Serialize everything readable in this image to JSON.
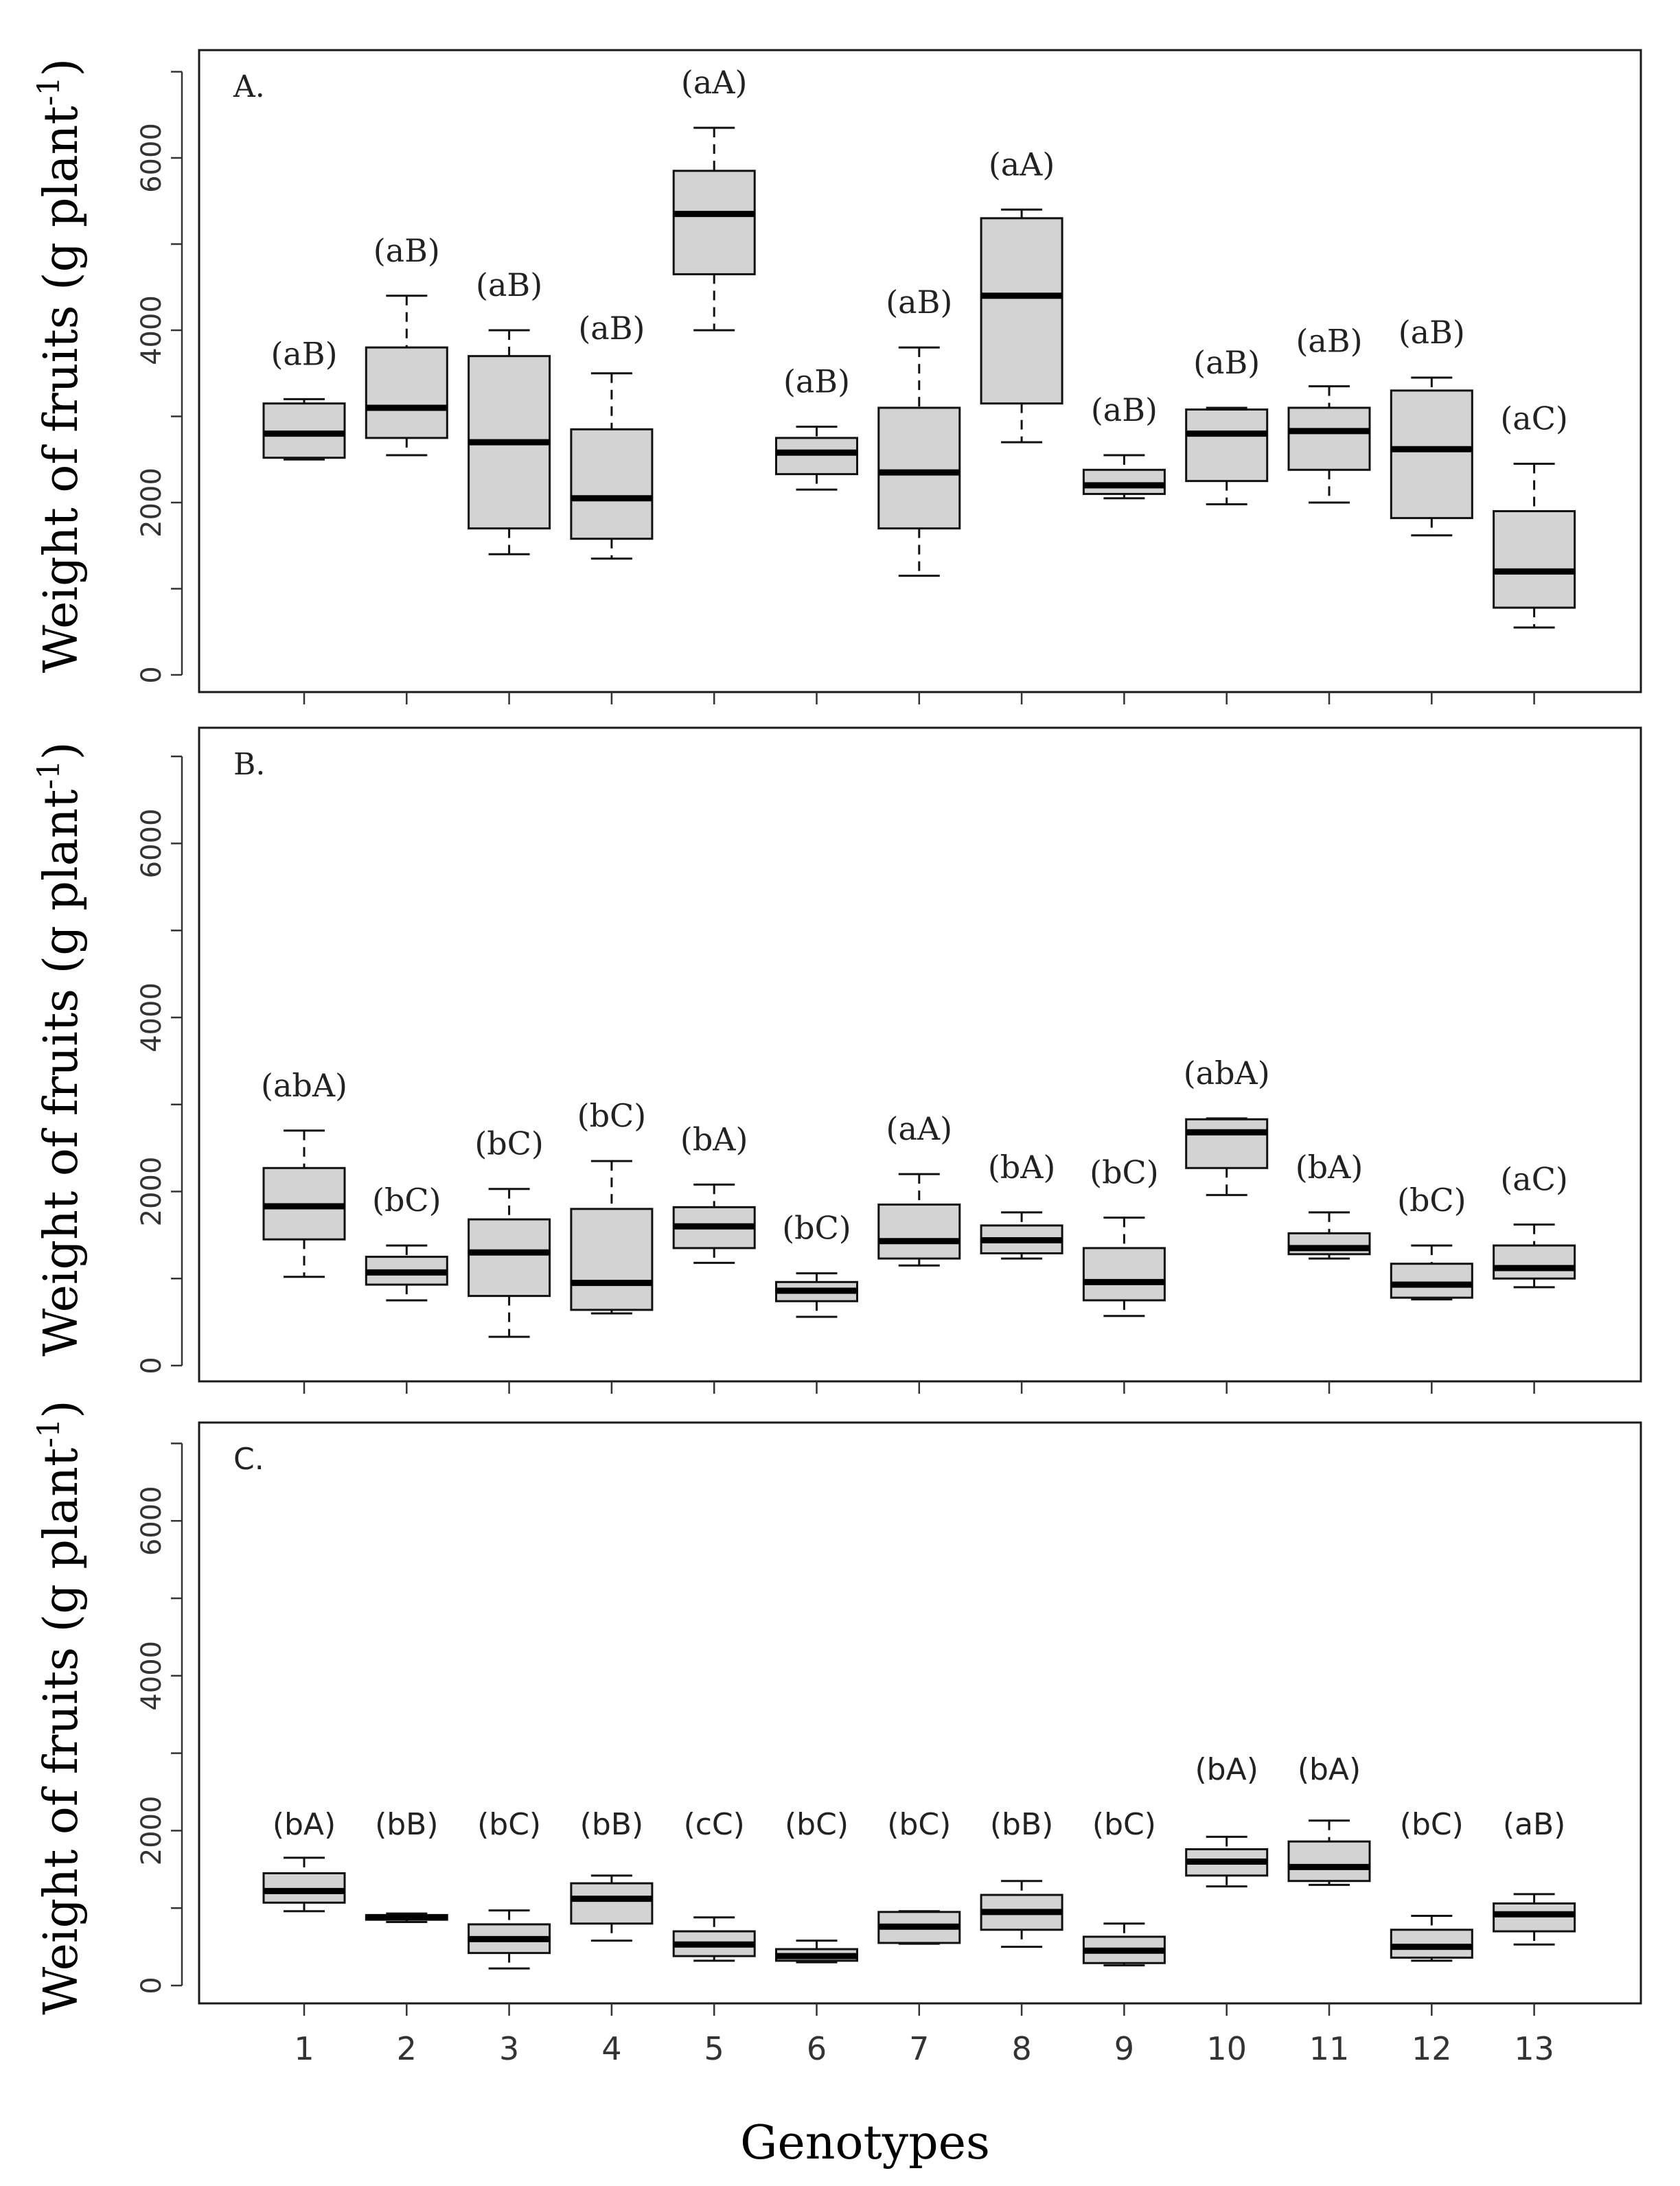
{
  "chart_data": {
    "type": "boxplot",
    "xlabel": "Genotypes",
    "categories": [
      "1",
      "2",
      "3",
      "4",
      "5",
      "6",
      "7",
      "8",
      "9",
      "10",
      "11",
      "12",
      "13"
    ],
    "ylim": [
      0,
      7000
    ],
    "yticks": [
      0,
      2000,
      4000,
      6000
    ],
    "ylabel_main": "Weight of fruits (g plant",
    "ylabel_sup": "-1",
    "ylabel_close": ")",
    "panels": [
      {
        "label": "A.",
        "letter_style": "serif",
        "boxes": [
          {
            "min": 2500,
            "q1": 2520,
            "median": 2800,
            "q3": 3150,
            "max": 3200,
            "sig": "(aB)"
          },
          {
            "min": 2550,
            "q1": 2750,
            "median": 3100,
            "q3": 3800,
            "max": 4400,
            "sig": "(aB)"
          },
          {
            "min": 1400,
            "q1": 1700,
            "median": 2700,
            "q3": 3700,
            "max": 4000,
            "sig": "(aB)"
          },
          {
            "min": 1350,
            "q1": 1580,
            "median": 2050,
            "q3": 2850,
            "max": 3500,
            "sig": "(aB)"
          },
          {
            "min": 4000,
            "q1": 4650,
            "median": 5350,
            "q3": 5850,
            "max": 6350,
            "sig": "(aA)"
          },
          {
            "min": 2150,
            "q1": 2330,
            "median": 2580,
            "q3": 2750,
            "max": 2880,
            "sig": "(aB)"
          },
          {
            "min": 1150,
            "q1": 1700,
            "median": 2350,
            "q3": 3100,
            "max": 3800,
            "sig": "(aB)"
          },
          {
            "min": 2700,
            "q1": 3150,
            "median": 4400,
            "q3": 5300,
            "max": 5400,
            "sig": "(aA)"
          },
          {
            "min": 2050,
            "q1": 2100,
            "median": 2200,
            "q3": 2380,
            "max": 2550,
            "sig": "(aB)"
          },
          {
            "min": 1980,
            "q1": 2250,
            "median": 2800,
            "q3": 3080,
            "max": 3100,
            "sig": "(aB)"
          },
          {
            "min": 2000,
            "q1": 2380,
            "median": 2830,
            "q3": 3100,
            "max": 3350,
            "sig": "(aB)"
          },
          {
            "min": 1620,
            "q1": 1820,
            "median": 2620,
            "q3": 3300,
            "max": 3450,
            "sig": "(aB)"
          },
          {
            "min": 550,
            "q1": 780,
            "median": 1200,
            "q3": 1900,
            "max": 2450,
            "sig": "(aC)"
          }
        ]
      },
      {
        "label": "B.",
        "letter_style": "serif",
        "boxes": [
          {
            "min": 1020,
            "q1": 1450,
            "median": 1830,
            "q3": 2270,
            "max": 2700,
            "sig": "(abA)"
          },
          {
            "min": 750,
            "q1": 930,
            "median": 1070,
            "q3": 1250,
            "max": 1380,
            "sig": "(bC)"
          },
          {
            "min": 330,
            "q1": 800,
            "median": 1300,
            "q3": 1680,
            "max": 2030,
            "sig": "(bC)"
          },
          {
            "min": 600,
            "q1": 640,
            "median": 950,
            "q3": 1800,
            "max": 2350,
            "sig": "(bC)"
          },
          {
            "min": 1180,
            "q1": 1350,
            "median": 1600,
            "q3": 1820,
            "max": 2080,
            "sig": "(bA)"
          },
          {
            "min": 560,
            "q1": 740,
            "median": 860,
            "q3": 960,
            "max": 1060,
            "sig": "(bC)"
          },
          {
            "min": 1150,
            "q1": 1230,
            "median": 1430,
            "q3": 1850,
            "max": 2200,
            "sig": "(aA)"
          },
          {
            "min": 1230,
            "q1": 1290,
            "median": 1440,
            "q3": 1610,
            "max": 1760,
            "sig": "(bA)"
          },
          {
            "min": 570,
            "q1": 750,
            "median": 960,
            "q3": 1350,
            "max": 1700,
            "sig": "(bC)"
          },
          {
            "min": 1960,
            "q1": 2270,
            "median": 2680,
            "q3": 2830,
            "max": 2840,
            "sig": "(abA)"
          },
          {
            "min": 1230,
            "q1": 1280,
            "median": 1350,
            "q3": 1520,
            "max": 1760,
            "sig": "(bA)"
          },
          {
            "min": 760,
            "q1": 780,
            "median": 930,
            "q3": 1170,
            "max": 1380,
            "sig": "(bC)"
          },
          {
            "min": 900,
            "q1": 1000,
            "median": 1120,
            "q3": 1380,
            "max": 1620,
            "sig": "(aC)"
          }
        ]
      },
      {
        "label": "C.",
        "letter_style": "sans",
        "boxes": [
          {
            "min": 960,
            "q1": 1070,
            "median": 1220,
            "q3": 1450,
            "max": 1650,
            "sig": "(bA)"
          },
          {
            "min": 820,
            "q1": 850,
            "median": 880,
            "q3": 910,
            "max": 930,
            "sig": "(bB)"
          },
          {
            "min": 220,
            "q1": 420,
            "median": 600,
            "q3": 790,
            "max": 970,
            "sig": "(bC)"
          },
          {
            "min": 580,
            "q1": 800,
            "median": 1120,
            "q3": 1320,
            "max": 1420,
            "sig": "(bB)"
          },
          {
            "min": 320,
            "q1": 380,
            "median": 530,
            "q3": 700,
            "max": 880,
            "sig": "(cC)"
          },
          {
            "min": 300,
            "q1": 320,
            "median": 380,
            "q3": 470,
            "max": 580,
            "sig": "(bC)"
          },
          {
            "min": 540,
            "q1": 550,
            "median": 760,
            "q3": 950,
            "max": 960,
            "sig": "(bC)"
          },
          {
            "min": 500,
            "q1": 720,
            "median": 950,
            "q3": 1170,
            "max": 1350,
            "sig": "(bB)"
          },
          {
            "min": 260,
            "q1": 290,
            "median": 450,
            "q3": 630,
            "max": 800,
            "sig": "(bC)"
          },
          {
            "min": 1280,
            "q1": 1420,
            "median": 1600,
            "q3": 1760,
            "max": 1920,
            "sig": "(bA)"
          },
          {
            "min": 1300,
            "q1": 1350,
            "median": 1530,
            "q3": 1860,
            "max": 2130,
            "sig": "(bA)"
          },
          {
            "min": 320,
            "q1": 360,
            "median": 500,
            "q3": 720,
            "max": 900,
            "sig": "(bC)"
          },
          {
            "min": 530,
            "q1": 700,
            "median": 920,
            "q3": 1060,
            "max": 1180,
            "sig": "(aB)"
          }
        ]
      }
    ]
  }
}
